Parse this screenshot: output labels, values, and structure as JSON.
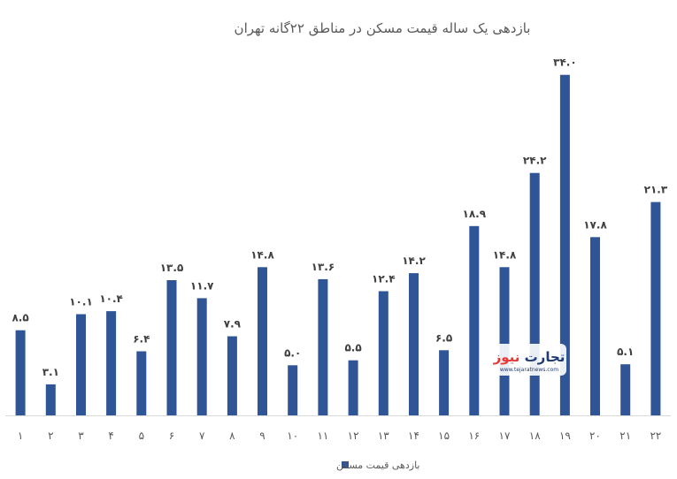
{
  "chart_data": {
    "type": "bar",
    "title": "بازدهی یک ساله قیمت مسکن در مناطق ۲۲گانه تهران",
    "xlabel": "",
    "ylabel": "",
    "categories": [
      "۱",
      "۲",
      "۳",
      "۴",
      "۵",
      "۶",
      "۷",
      "۸",
      "۹",
      "۱۰",
      "۱۱",
      "۱۲",
      "۱۳",
      "۱۴",
      "۱۵",
      "۱۶",
      "۱۷",
      "۱۸",
      "۱۹",
      "۲۰",
      "۲۱",
      "۲۲"
    ],
    "series": [
      {
        "name": "بازدهی قیمت مسکن",
        "values": [
          8.5,
          3.1,
          10.1,
          10.4,
          6.4,
          13.5,
          11.7,
          7.9,
          14.8,
          5.0,
          13.6,
          5.5,
          12.4,
          14.2,
          6.5,
          18.9,
          14.8,
          24.2,
          34.0,
          17.8,
          5.1,
          21.3
        ],
        "labels": [
          "۸.۵",
          "۳.۱",
          "۱۰.۱",
          "۱۰.۴",
          "۶.۴",
          "۱۳.۵",
          "۱۱.۷",
          "۷.۹",
          "۱۴.۸",
          "۵.۰",
          "۱۳.۶",
          "۵.۵",
          "۱۲.۴",
          "۱۴.۲",
          "۶.۵",
          "۱۸.۹",
          "۱۴.۸",
          "۲۴.۲",
          "۳۴.۰",
          "۱۷.۸",
          "۵.۱",
          "۲۱.۳"
        ],
        "color": "#2f5597"
      }
    ],
    "ylim": [
      0,
      36
    ],
    "grid": false,
    "legend_position": "bottom-center"
  },
  "watermark": {
    "brand_part1": "تجارت",
    "brand_part2": "نیوز",
    "site": "www.tejaratnews.com",
    "color_brand_dark": "#1f3b73",
    "color_brand_accent": "#e53935"
  }
}
